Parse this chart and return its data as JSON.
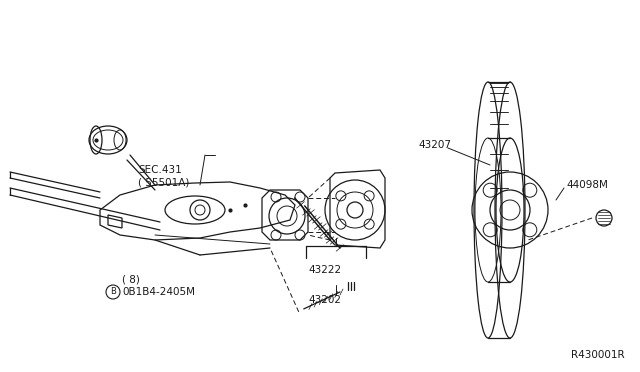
{
  "bg_color": "#ffffff",
  "line_color": "#1a1a1a",
  "fig_width": 6.4,
  "fig_height": 3.72,
  "dpi": 100,
  "labels": {
    "bolt_circle": "B",
    "bolt_top": "0B1B4-2405M",
    "bolt_top_sub": "( 8)",
    "sec": "SEC.431",
    "sec_sub": "( 55501A)",
    "part1": "43207",
    "part2": "44098M",
    "part3": "43222",
    "part4": "43202",
    "ref": "R430001R"
  }
}
